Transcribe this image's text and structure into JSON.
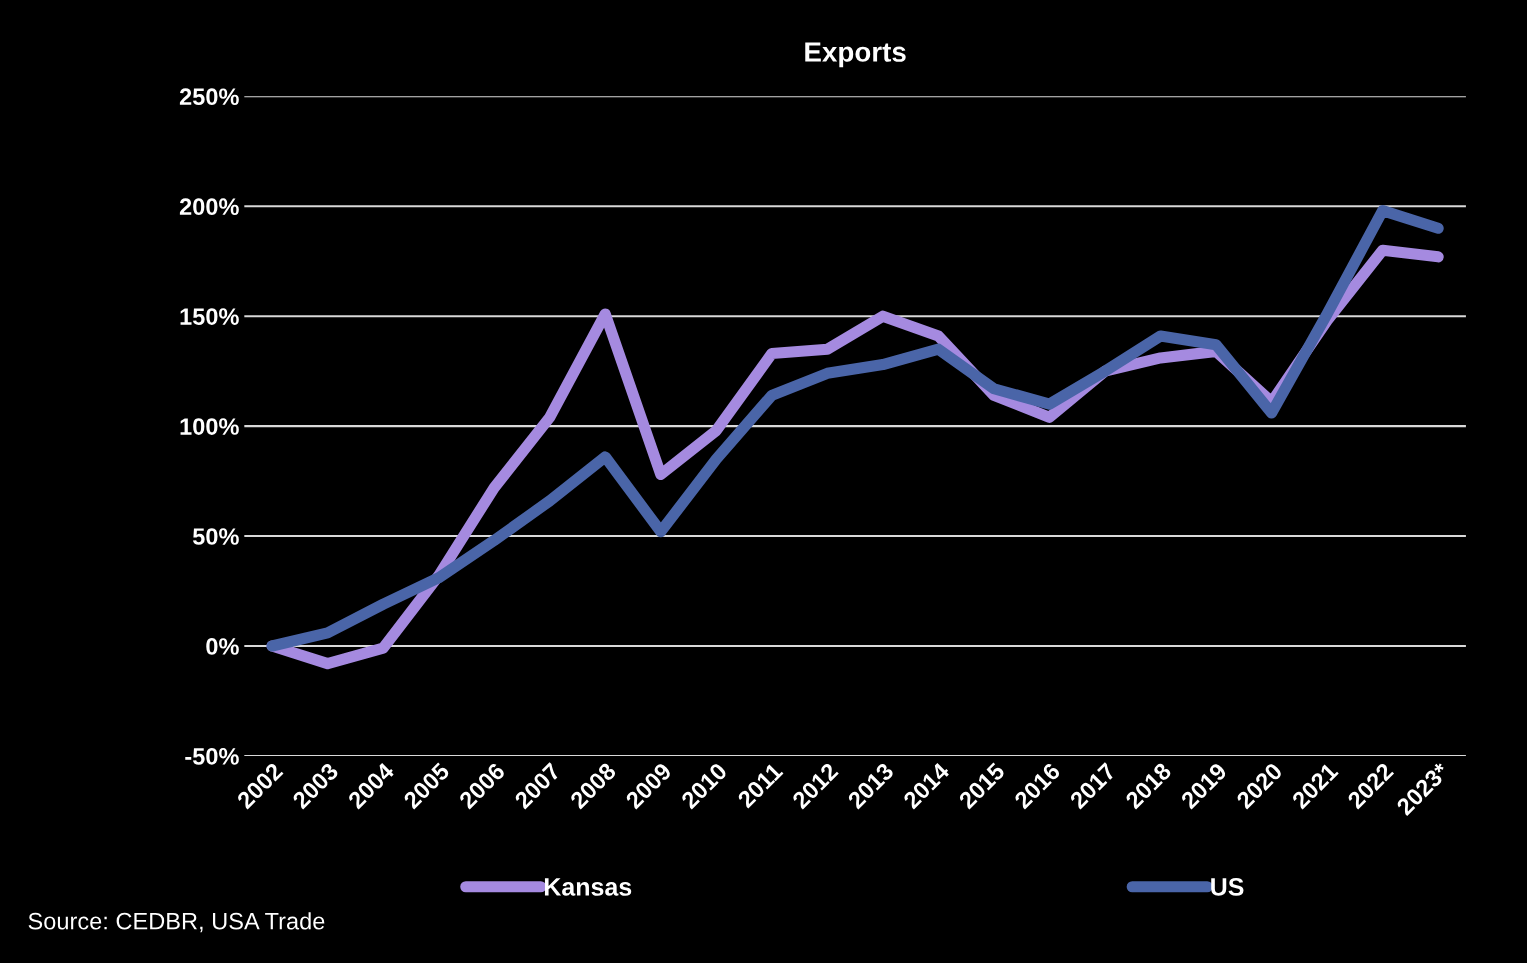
{
  "chart_data": {
    "type": "line",
    "title": "Exports",
    "categories": [
      "2002",
      "2003",
      "2004",
      "2005",
      "2006",
      "2007",
      "2008",
      "2009",
      "2010",
      "2011",
      "2012",
      "2013",
      "2014",
      "2015",
      "2016",
      "2017",
      "2018",
      "2019",
      "2020",
      "2021",
      "2022",
      "2023*"
    ],
    "series": [
      {
        "name": "Kansas",
        "color": "#a58ae0",
        "values": [
          0,
          -8,
          -1,
          32,
          72,
          104,
          151,
          78,
          98,
          133,
          135,
          150,
          141,
          114,
          104,
          125,
          131,
          134,
          111,
          148,
          180,
          177
        ]
      },
      {
        "name": "US",
        "color": "#4a65a8",
        "values": [
          0,
          6,
          19,
          31,
          48,
          66,
          86,
          52,
          85,
          114,
          124,
          128,
          135,
          117,
          110,
          125,
          141,
          137,
          106,
          151,
          198,
          190
        ]
      }
    ],
    "ylim": [
      -50,
      250
    ],
    "yticks": [
      {
        "value": -50,
        "label": "-50%"
      },
      {
        "value": 0,
        "label": "0%"
      },
      {
        "value": 50,
        "label": "50%"
      },
      {
        "value": 100,
        "label": "100%"
      },
      {
        "value": 150,
        "label": "150%"
      },
      {
        "value": 200,
        "label": "200%"
      },
      {
        "value": 250,
        "label": "250%"
      }
    ],
    "grid": "y",
    "legend": "bottom",
    "marker": "none",
    "line_style": "solid",
    "annotations": [
      "Source: CEDBR, USA Trade"
    ]
  }
}
